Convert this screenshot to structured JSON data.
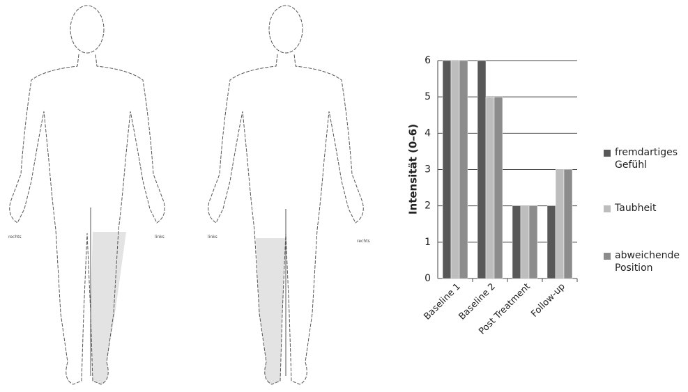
{
  "body_diagram": {
    "front_labels": [
      "rechts",
      "links"
    ],
    "back_labels": [
      "links",
      "rechts"
    ]
  },
  "chart_data": {
    "type": "bar",
    "y_label": "Intensität (0–6)",
    "categories": [
      "Baseline 1",
      "Baseline 2",
      "Post Treatment",
      "Follow-up"
    ],
    "series": [
      {
        "name": "fremdartiges Gefühl",
        "color": "#585858",
        "values": [
          6,
          6,
          2,
          2
        ]
      },
      {
        "name": "Taubheit",
        "color": "#bdbdbd",
        "values": [
          6,
          5,
          2,
          3
        ]
      },
      {
        "name": "abweichende Position",
        "color": "#8c8c8c",
        "values": [
          6,
          5,
          2,
          3
        ]
      }
    ],
    "ylim": [
      0,
      6
    ],
    "yticks": [
      0,
      1,
      2,
      3,
      4,
      5,
      6
    ],
    "grid": true,
    "legend": "right"
  }
}
